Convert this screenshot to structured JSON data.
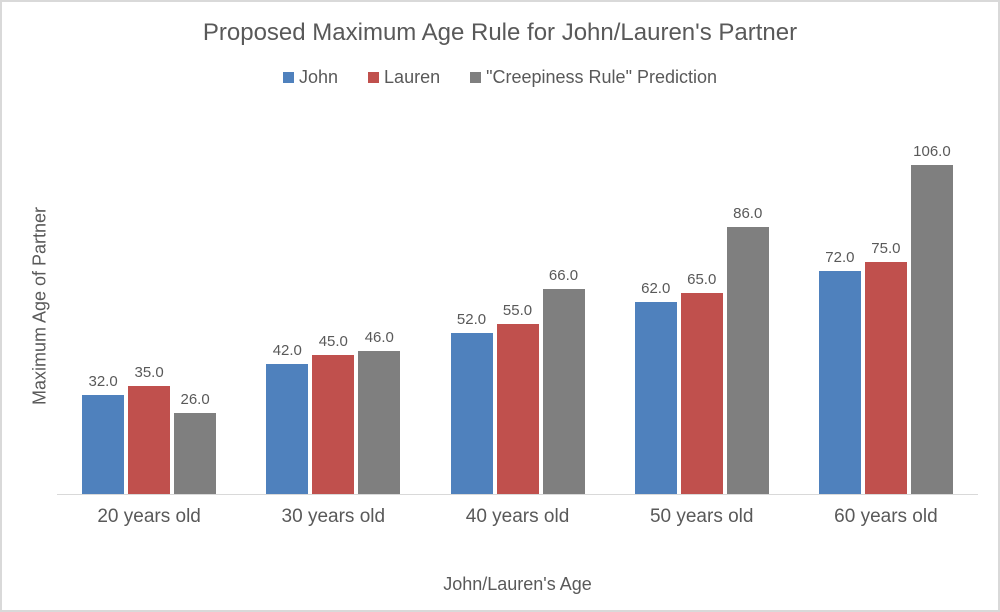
{
  "page": {
    "background_color": "#ffffff",
    "frame_border_color": "#d9d9d9",
    "text_color": "#595959",
    "axis_line_color": "#d9d9d9"
  },
  "chart_data": {
    "type": "bar",
    "title": "Proposed Maximum Age Rule for John/Lauren's Partner",
    "xlabel": "John/Lauren's Age",
    "ylabel": "Maximum Age of Partner",
    "categories": [
      "20 years old",
      "30 years old",
      "40 years old",
      "50 years old",
      "60 years old"
    ],
    "series": [
      {
        "name": "John",
        "color": "#4f81bd",
        "values": [
          32.0,
          42.0,
          52.0,
          62.0,
          72.0
        ]
      },
      {
        "name": "Lauren",
        "color": "#c0504d",
        "values": [
          35.0,
          45.0,
          55.0,
          65.0,
          75.0
        ]
      },
      {
        "name": "\"Creepiness Rule\" Prediction",
        "color": "#7f7f7f",
        "values": [
          26.0,
          46.0,
          66.0,
          86.0,
          106.0
        ]
      }
    ],
    "value_label_format": ".1f",
    "ylim": [
      0,
      120
    ],
    "grid": false,
    "legend_position": "top",
    "y_axis_ticks_visible": false,
    "bar_value_labels_visible": true
  }
}
